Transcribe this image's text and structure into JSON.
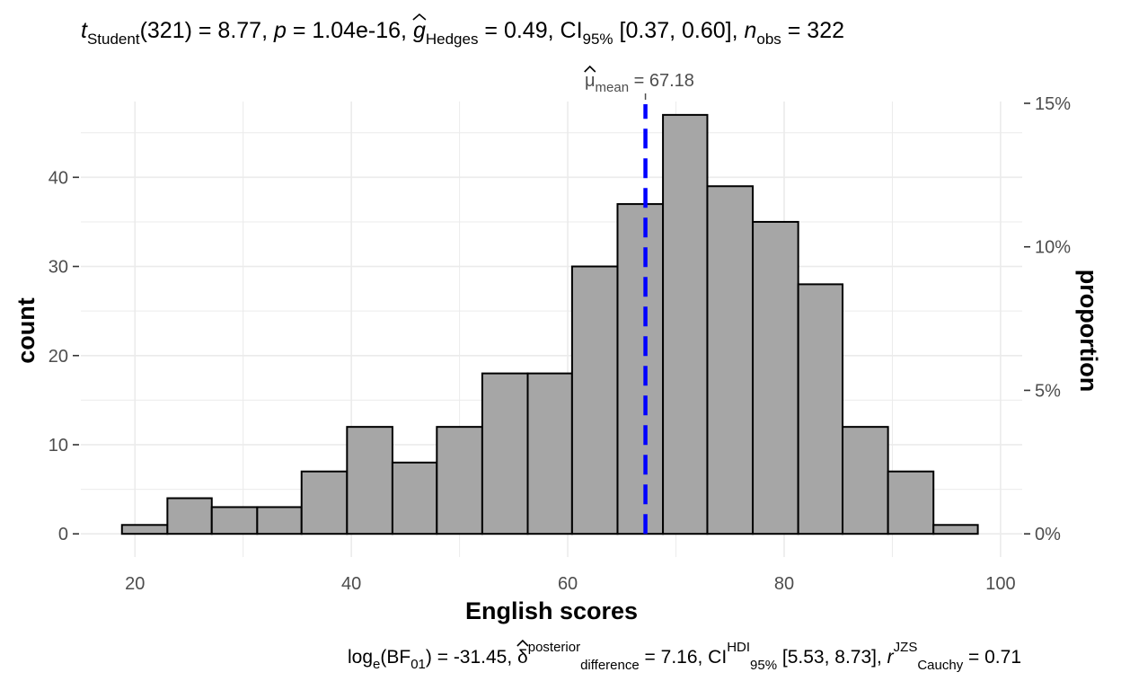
{
  "chart_data": {
    "type": "bar",
    "subtype": "histogram",
    "title": {
      "t_name": "t",
      "t_sub": "Student",
      "t_stat": "(321) = 8.77, ",
      "p_name": "p",
      "p_val": " = 1.04e-16, ",
      "g_name": "g",
      "g_sub": "Hedges",
      "g_val": " = 0.49, CI",
      "ci_sub": "95%",
      "ci_val": " [0.37, 0.60], ",
      "n_name": "n",
      "n_sub": "obs",
      "n_val": " = 322"
    },
    "subtitle": {
      "log": "log",
      "log_sub": "e",
      "bf": "(BF",
      "bf_sub": "01",
      "bf_val": ") = -31.45, ",
      "delta": "δ",
      "delta_sup": "posterior",
      "delta_sub": "difference",
      "delta_val": " = 7.16, CI",
      "hdi_sup": "HDI",
      "hdi_sub": "95%",
      "hdi_val": " [5.53, 8.73], ",
      "r_name": "r",
      "r_sup": "JZS",
      "r_sub": "Cauchy",
      "r_val": " = 0.71"
    },
    "xlabel": "English scores",
    "ylabel": "count",
    "y2label": "proportion",
    "xlim": [
      15,
      102
    ],
    "ylim": [
      -2.6,
      48.5
    ],
    "x_ticks": [
      20,
      40,
      60,
      80,
      100
    ],
    "y_ticks": [
      0,
      10,
      20,
      30,
      40
    ],
    "y2_ticks": [
      {
        "value": 0.0,
        "label": "0%"
      },
      {
        "value": 0.05,
        "label": "5%"
      },
      {
        "value": 0.1,
        "label": "10%"
      },
      {
        "value": 0.15,
        "label": "15%"
      }
    ],
    "n_total": 322,
    "bins": [
      {
        "x0": 18.8,
        "x1": 23.0,
        "count": 1
      },
      {
        "x0": 23.0,
        "x1": 27.1,
        "count": 4
      },
      {
        "x0": 27.1,
        "x1": 31.3,
        "count": 3
      },
      {
        "x0": 31.3,
        "x1": 35.4,
        "count": 3
      },
      {
        "x0": 35.4,
        "x1": 39.6,
        "count": 7
      },
      {
        "x0": 39.6,
        "x1": 43.8,
        "count": 12
      },
      {
        "x0": 43.8,
        "x1": 47.9,
        "count": 8
      },
      {
        "x0": 47.9,
        "x1": 52.1,
        "count": 12
      },
      {
        "x0": 52.1,
        "x1": 56.3,
        "count": 18
      },
      {
        "x0": 56.3,
        "x1": 60.4,
        "count": 18
      },
      {
        "x0": 60.4,
        "x1": 64.6,
        "count": 30
      },
      {
        "x0": 64.6,
        "x1": 68.8,
        "count": 37
      },
      {
        "x0": 68.8,
        "x1": 72.9,
        "count": 47
      },
      {
        "x0": 72.9,
        "x1": 77.1,
        "count": 39
      },
      {
        "x0": 77.1,
        "x1": 81.3,
        "count": 35
      },
      {
        "x0": 81.3,
        "x1": 85.4,
        "count": 28
      },
      {
        "x0": 85.4,
        "x1": 89.6,
        "count": 12
      },
      {
        "x0": 89.6,
        "x1": 93.8,
        "count": 7
      },
      {
        "x0": 93.8,
        "x1": 97.9,
        "count": 1
      }
    ],
    "mean": {
      "value": 67.18,
      "mu": "μ",
      "sub": "mean",
      "val_text": " = 67.18"
    },
    "colors": {
      "bar_fill": "#a6a6a6",
      "bar_stroke": "#000000",
      "mean_line": "#0000ff",
      "grid": "#ebebeb"
    },
    "grid": true
  }
}
